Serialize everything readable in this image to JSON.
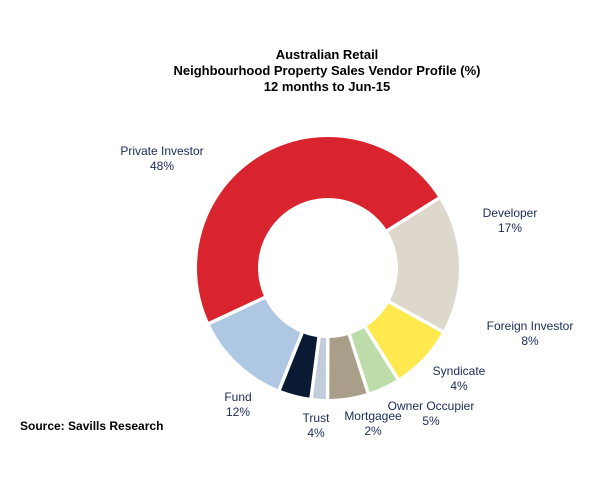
{
  "chart_data": {
    "type": "pie",
    "style": "donut",
    "title_lines": [
      "Australian Retail",
      "Neighbourhood Property Sales Vendor Profile (%)",
      "12 months to Jun-15"
    ],
    "slices": [
      {
        "name": "Private Investor",
        "value": 48,
        "value_label": "48%",
        "color": "#d9232e"
      },
      {
        "name": "Developer",
        "value": 17,
        "value_label": "17%",
        "color": "#ddd7cc"
      },
      {
        "name": "Foreign Investor",
        "value": 8,
        "value_label": "8%",
        "color": "#ffe94f"
      },
      {
        "name": "Syndicate",
        "value": 4,
        "value_label": "4%",
        "color": "#bcdcaa"
      },
      {
        "name": "Owner Occupier",
        "value": 5,
        "value_label": "5%",
        "color": "#a99e8a"
      },
      {
        "name": "Mortgagee",
        "value": 2,
        "value_label": "2%",
        "color": "#c2cddb"
      },
      {
        "name": "Trust",
        "value": 4,
        "value_label": "4%",
        "color": "#0b1a33"
      },
      {
        "name": "Fund",
        "value": 12,
        "value_label": "12%",
        "color": "#aec7e2"
      }
    ]
  },
  "source": "Source: Savills Research",
  "colors": {
    "label_text": "#1a2a5a",
    "background": "#ffffff"
  }
}
